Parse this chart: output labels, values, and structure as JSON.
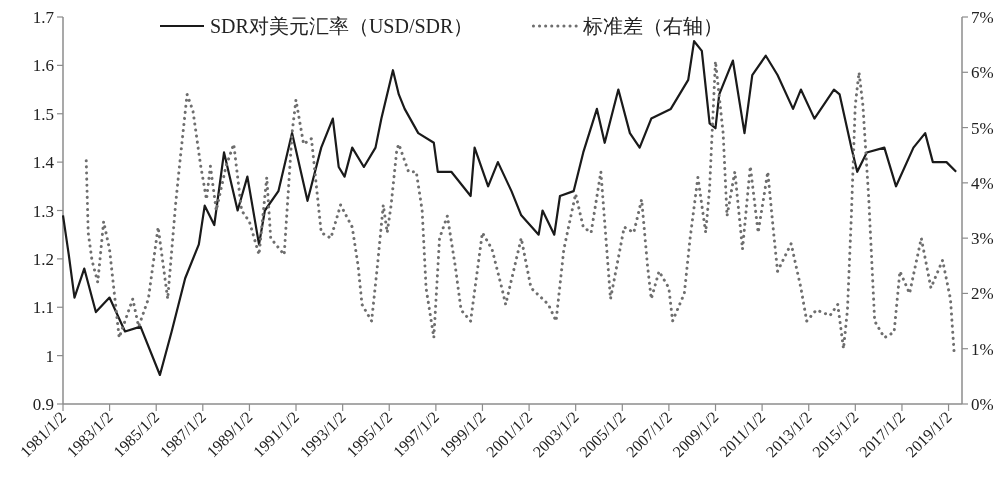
{
  "chart_data": {
    "type": "line",
    "legend": "top",
    "marker": "none",
    "grid": false,
    "xlim": [
      "1981-01-02",
      "2019-08-01"
    ],
    "xticks": [
      {
        "value": "1981-01-02",
        "label": "1981/1/2"
      },
      {
        "value": "1983-01-02",
        "label": "1983/1/2"
      },
      {
        "value": "1985-01-02",
        "label": "1985/1/2"
      },
      {
        "value": "1987-01-02",
        "label": "1987/1/2"
      },
      {
        "value": "1989-01-02",
        "label": "1989/1/2"
      },
      {
        "value": "1991-01-02",
        "label": "1991/1/2"
      },
      {
        "value": "1993-01-02",
        "label": "1993/1/2"
      },
      {
        "value": "1995-01-02",
        "label": "1995/1/2"
      },
      {
        "value": "1997-01-02",
        "label": "1997/1/2"
      },
      {
        "value": "1999-01-02",
        "label": "1999/1/2"
      },
      {
        "value": "2001-01-02",
        "label": "2001/1/2"
      },
      {
        "value": "2003-01-02",
        "label": "2003/1/2"
      },
      {
        "value": "2005-01-02",
        "label": "2005/1/2"
      },
      {
        "value": "2007-01-02",
        "label": "2007/1/2"
      },
      {
        "value": "2009-01-02",
        "label": "2009/1/2"
      },
      {
        "value": "2011-01-02",
        "label": "2011/1/2"
      },
      {
        "value": "2013-01-02",
        "label": "2013/1/2"
      },
      {
        "value": "2015-01-02",
        "label": "2015/1/2"
      },
      {
        "value": "2017-01-02",
        "label": "2017/1/2"
      },
      {
        "value": "2019-01-02",
        "label": "2019/1/2"
      }
    ],
    "ylim": [
      0.9,
      1.7
    ],
    "yticks": [
      0.9,
      1,
      1.1,
      1.2,
      1.3,
      1.4,
      1.5,
      1.6,
      1.7
    ],
    "y2lim": [
      0,
      7
    ],
    "y2ticks": [
      {
        "value": 0,
        "label": "0%"
      },
      {
        "value": 1,
        "label": "1%"
      },
      {
        "value": 2,
        "label": "2%"
      },
      {
        "value": 3,
        "label": "3%"
      },
      {
        "value": 4,
        "label": "4%"
      },
      {
        "value": 5,
        "label": "5%"
      },
      {
        "value": 6,
        "label": "6%"
      },
      {
        "value": 7,
        "label": "7%"
      }
    ],
    "series": [
      {
        "name": "SDR对美元汇率（USD/SDR）",
        "color": "#1a1a1a",
        "line_style": "solid",
        "x": [
          "1981-01-02",
          "1981-04",
          "1981-07",
          "1981-12",
          "1982-06",
          "1983-01",
          "1983-09",
          "1984-05",
          "1985-03",
          "1985-09",
          "1986-04",
          "1986-11",
          "1987-02",
          "1987-07",
          "1987-12",
          "1988-07",
          "1988-12",
          "1989-06",
          "1989-09",
          "1990-04",
          "1990-11",
          "1991-07",
          "1992-02",
          "1992-08",
          "1992-11",
          "1993-02",
          "1993-06",
          "1993-12",
          "1994-06",
          "1994-09",
          "1995-03",
          "1995-06",
          "1995-09",
          "1996-04",
          "1996-12",
          "1997-02",
          "1997-09",
          "1998-07",
          "1998-09",
          "1999-04",
          "1999-09",
          "2000-04",
          "2000-09",
          "2001-06",
          "2001-08",
          "2002-02",
          "2002-05",
          "2002-12",
          "2003-05",
          "2003-12",
          "2004-04",
          "2004-11",
          "2005-05",
          "2005-10",
          "2006-04",
          "2007-02",
          "2007-11",
          "2008-02",
          "2008-06",
          "2008-10",
          "2009-01",
          "2009-03",
          "2009-10",
          "2010-04",
          "2010-08",
          "2011-03",
          "2011-09",
          "2012-05",
          "2012-09",
          "2013-04",
          "2014-02",
          "2014-05",
          "2014-11",
          "2015-02",
          "2015-07",
          "2016-04",
          "2016-10",
          "2017-07",
          "2018-01",
          "2018-05",
          "2018-12",
          "2019-05"
        ],
        "values": [
          1.29,
          1.21,
          1.12,
          1.18,
          1.09,
          1.12,
          1.05,
          1.06,
          0.96,
          1.05,
          1.16,
          1.23,
          1.31,
          1.27,
          1.42,
          1.3,
          1.37,
          1.23,
          1.3,
          1.34,
          1.46,
          1.32,
          1.43,
          1.49,
          1.39,
          1.37,
          1.43,
          1.39,
          1.43,
          1.49,
          1.59,
          1.54,
          1.51,
          1.46,
          1.44,
          1.38,
          1.38,
          1.33,
          1.43,
          1.35,
          1.4,
          1.34,
          1.29,
          1.25,
          1.3,
          1.25,
          1.33,
          1.34,
          1.42,
          1.51,
          1.44,
          1.55,
          1.46,
          1.43,
          1.49,
          1.51,
          1.57,
          1.65,
          1.63,
          1.48,
          1.47,
          1.54,
          1.61,
          1.46,
          1.58,
          1.62,
          1.58,
          1.51,
          1.55,
          1.49,
          1.55,
          1.54,
          1.43,
          1.38,
          1.42,
          1.43,
          1.35,
          1.43,
          1.46,
          1.4,
          1.4,
          1.38
        ]
      },
      {
        "name": "标准差（右轴）",
        "color": "#6e6e6e",
        "axis": "y2",
        "line_style": "dotted",
        "x": [
          "1982-01",
          "1982-02",
          "1982-04",
          "1982-07",
          "1982-10",
          "1983-01",
          "1983-06",
          "1984-01",
          "1984-04",
          "1984-09",
          "1985-02",
          "1985-07",
          "1985-11",
          "1986-01",
          "1986-05",
          "1986-08",
          "1986-12",
          "1987-03",
          "1987-05",
          "1987-08",
          "1988-01",
          "1988-05",
          "1988-09",
          "1989-01",
          "1989-06",
          "1989-10",
          "1989-12",
          "1990-07",
          "1990-11",
          "1991-01",
          "1991-05",
          "1991-09",
          "1992-02",
          "1992-07",
          "1992-12",
          "1993-06",
          "1993-09",
          "1993-11",
          "1994-04",
          "1994-07",
          "1994-10",
          "1994-12",
          "1995-02",
          "1995-05",
          "1995-06",
          "1995-11",
          "1996-03",
          "1996-06",
          "1996-08",
          "1996-12",
          "1997-03",
          "1997-07",
          "1997-11",
          "1998-02",
          "1998-07",
          "1999-01",
          "1999-06",
          "1999-11",
          "2000-01",
          "2000-09",
          "2001-02",
          "2001-11",
          "2002-03",
          "2002-07",
          "2003-01",
          "2003-05",
          "2003-09",
          "2004-02",
          "2004-07",
          "2005-02",
          "2005-07",
          "2005-11",
          "2006-02",
          "2006-04",
          "2006-08",
          "2007-01",
          "2007-03",
          "2007-09",
          "2007-12",
          "2008-04",
          "2008-08",
          "2008-10",
          "2009-01",
          "2009-05",
          "2009-07",
          "2009-11",
          "2010-03",
          "2010-07",
          "2010-11",
          "2011-04",
          "2011-07",
          "2011-09",
          "2012-04",
          "2012-09",
          "2012-12",
          "2013-05",
          "2013-12",
          "2014-04",
          "2014-07",
          "2014-09",
          "2014-11",
          "2015-01",
          "2015-03",
          "2015-05",
          "2015-08",
          "2015-11",
          "2016-04",
          "2016-09",
          "2016-12",
          "2017-05",
          "2017-11",
          "2018-04",
          "2018-10",
          "2019-02",
          "2019-04"
        ],
        "values": [
          4.4,
          3.1,
          2.6,
          2.2,
          3.3,
          2.8,
          1.2,
          1.9,
          1.4,
          1.9,
          3.2,
          1.9,
          3.6,
          4.3,
          5.6,
          5.3,
          4.3,
          3.7,
          4.3,
          3.5,
          4.3,
          4.7,
          3.5,
          3.3,
          2.7,
          4.1,
          3.0,
          2.7,
          4.9,
          5.5,
          4.7,
          4.8,
          3.1,
          3.0,
          3.6,
          3.2,
          2.5,
          1.8,
          1.5,
          2.5,
          3.6,
          3.1,
          3.6,
          4.6,
          4.7,
          4.2,
          4.2,
          3.5,
          2.1,
          1.2,
          3.0,
          3.4,
          2.5,
          1.7,
          1.5,
          3.1,
          2.8,
          2.1,
          1.8,
          3.0,
          2.1,
          1.8,
          1.5,
          2.8,
          3.8,
          3.2,
          3.1,
          4.2,
          1.9,
          3.2,
          3.1,
          3.7,
          2.5,
          1.9,
          2.4,
          2.1,
          1.5,
          2.0,
          3.0,
          4.1,
          3.1,
          3.9,
          6.2,
          4.9,
          3.4,
          4.2,
          2.8,
          4.3,
          3.1,
          4.2,
          3.1,
          2.4,
          2.9,
          2.1,
          1.5,
          1.7,
          1.6,
          1.8,
          1.0,
          1.7,
          3.4,
          5.4,
          6.0,
          5.4,
          3.7,
          1.5,
          1.2,
          1.3,
          2.4,
          2.0,
          3.0,
          2.1,
          2.6,
          1.9,
          0.9
        ]
      }
    ]
  }
}
